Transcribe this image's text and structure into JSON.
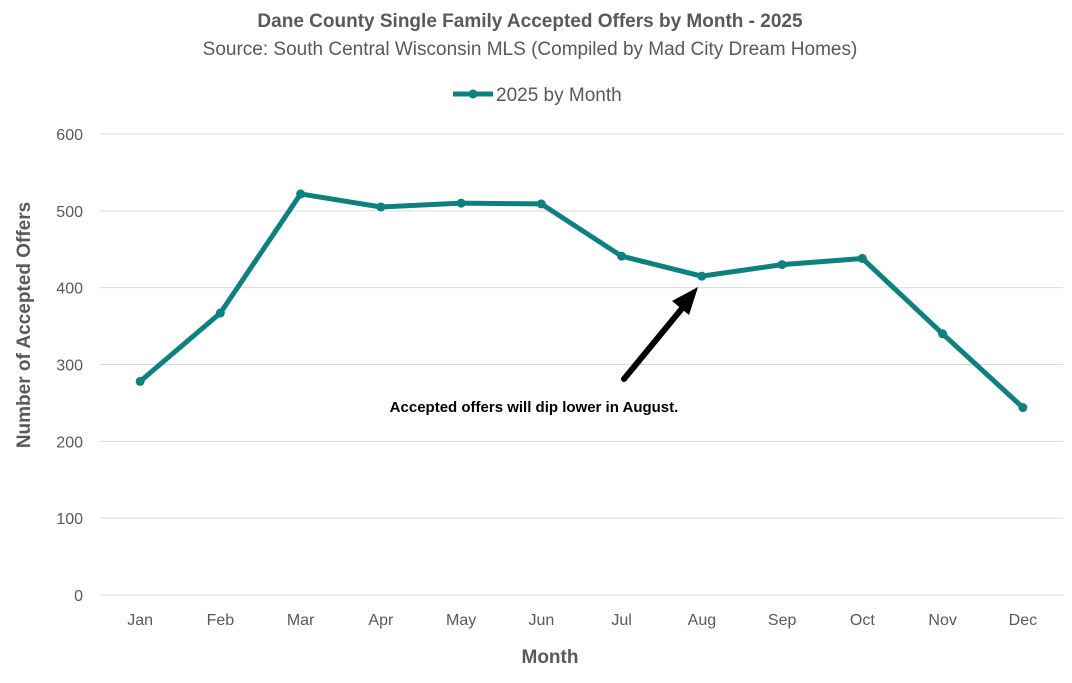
{
  "chart_data": {
    "type": "line",
    "title": "Dane County Single Family Accepted Offers by Month - 2025",
    "subtitle": "Source: South Central Wisconsin MLS (Compiled by Mad City Dream Homes)",
    "xlabel": "Month",
    "ylabel": "Number of Accepted Offers",
    "categories": [
      "Jan",
      "Feb",
      "Mar",
      "Apr",
      "May",
      "Jun",
      "Jul",
      "Aug",
      "Sep",
      "Oct",
      "Nov",
      "Dec"
    ],
    "series": [
      {
        "name": "2025 by Month",
        "color": "#0f8080",
        "values": [
          278,
          367,
          522,
          505,
          510,
          509,
          441,
          415,
          430,
          438,
          340,
          244
        ]
      }
    ],
    "ylim": [
      0,
      600
    ],
    "yticks": [
      "0",
      "100",
      "200",
      "300",
      "400",
      "500",
      "600"
    ],
    "grid": true,
    "legend_position": "top-center",
    "annotation": {
      "text": "Accepted offers will dip lower in August.",
      "points_to": "Aug"
    }
  }
}
